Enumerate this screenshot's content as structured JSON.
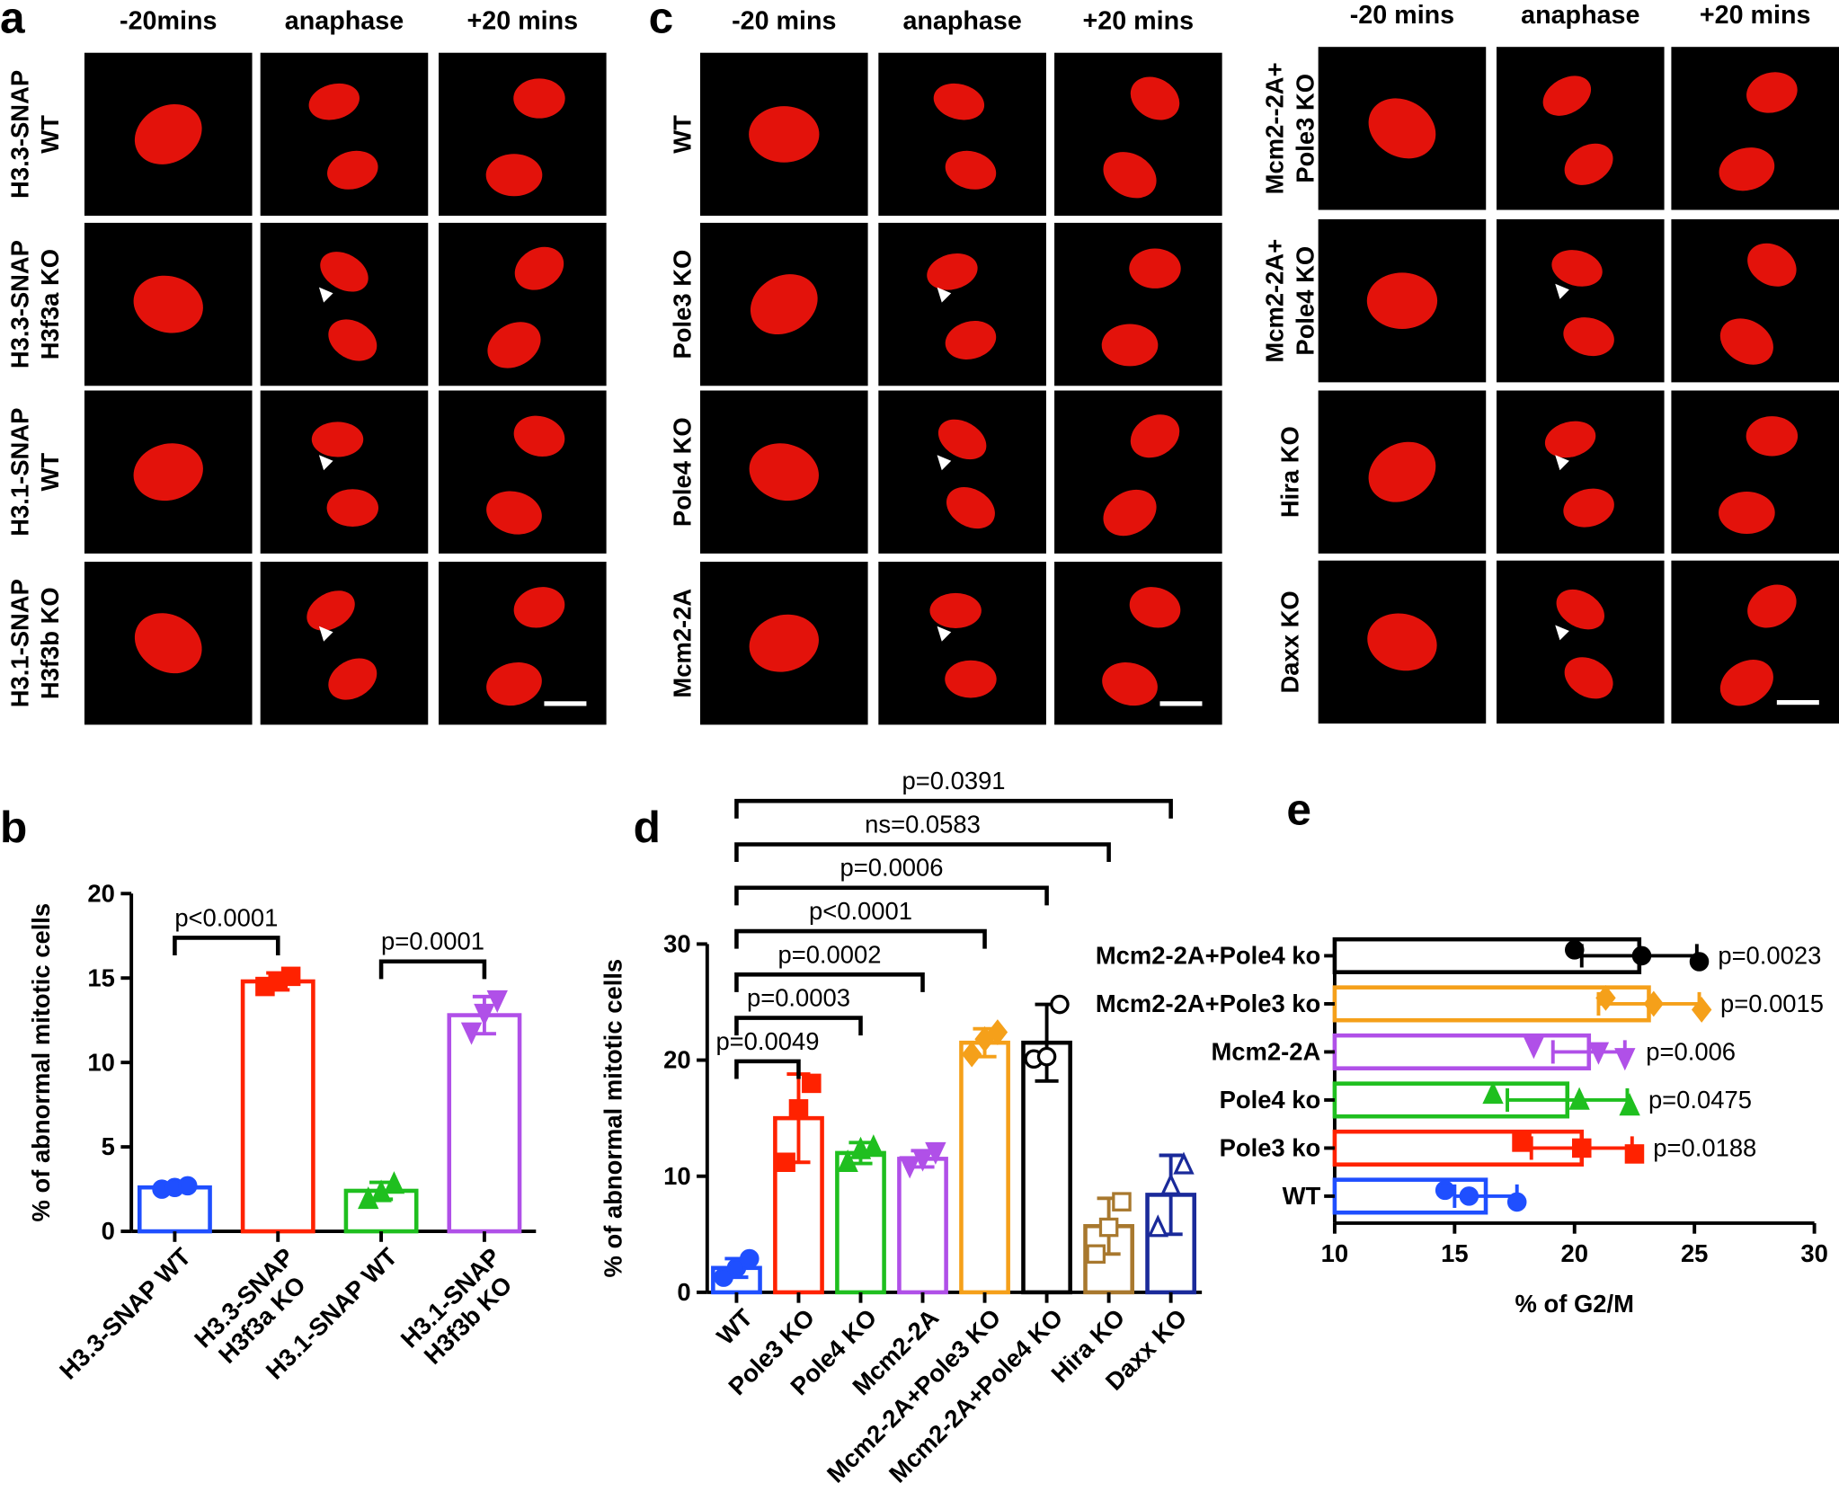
{
  "panel_labels": [
    "a",
    "b",
    "c",
    "d",
    "e"
  ],
  "image_panels": [
    {
      "columns": [
        "-20mins",
        "anaphase",
        "+20 mins"
      ],
      "rows": [
        [
          "H3.3-SNAP",
          "WT"
        ],
        [
          "H3.3-SNAP",
          "H3f3a KO"
        ],
        [
          "H3.1-SNAP",
          "WT"
        ],
        [
          "H3.1-SNAP",
          "H3f3b KO"
        ]
      ]
    },
    {
      "columns": [
        "-20 mins",
        "anaphase",
        "+20 mins"
      ],
      "rows": [
        [
          "WT"
        ],
        [
          "Pole3 KO"
        ],
        [
          "Pole4 KO"
        ],
        [
          "Mcm2-2A"
        ]
      ]
    },
    {
      "columns": [
        "-20 mins",
        "anaphase",
        "+20 mins"
      ],
      "rows": [
        [
          "Mcm2--2A+",
          "Pole3 KO"
        ],
        [
          "Mcm2-2A+",
          "Pole4 KO"
        ],
        [
          "Hira KO"
        ],
        [
          "Daxx KO"
        ]
      ]
    }
  ],
  "chart_data": [
    {
      "type": "bar",
      "ylabel": "% of  abnormal mitotic cells",
      "categories": [
        [
          "H3.3-SNAP WT"
        ],
        [
          "H3.3-SNAP",
          "H3f3a KO"
        ],
        [
          "H3.1-SNAP WT"
        ],
        [
          "H3.1-SNAP",
          "H3f3b KO"
        ]
      ],
      "values": [
        2.6,
        14.8,
        2.4,
        12.8
      ],
      "errors": [
        0.15,
        0.5,
        0.5,
        1.1
      ],
      "points": [
        [
          2.5,
          2.6,
          2.7
        ],
        [
          14.5,
          14.8,
          15.1
        ],
        [
          1.9,
          2.3,
          2.8
        ],
        [
          11.8,
          12.9,
          13.7
        ]
      ],
      "colors": [
        "#1f4fff",
        "#ff2200",
        "#1fbf1f",
        "#b050e8"
      ],
      "markers": [
        "circle",
        "square",
        "triangle",
        "triangle-down"
      ],
      "p_values": [
        null,
        "p<0.0001",
        null,
        "p=0.0001"
      ],
      "ylim": [
        0,
        20
      ],
      "yticks": [
        0,
        5,
        10,
        15,
        20
      ]
    },
    {
      "type": "bar",
      "ylabel": "% of  abnormal mitotic cells",
      "categories": [
        "WT",
        "Pole3 KO",
        "Pole4 KO",
        "Mcm2-2A",
        "Mcm2-2A+Pole3 KO",
        "Mcm2-2A+Pole4 KO",
        "Hira KO",
        "Daxx KO"
      ],
      "values": [
        2.1,
        15,
        12,
        11.5,
        21.5,
        21.5,
        5.7,
        8.4
      ],
      "errors": [
        0.8,
        3.8,
        0.9,
        0.7,
        1.2,
        3.3,
        2.4,
        3.4
      ],
      "points": [
        [
          1.3,
          2.1,
          2.9
        ],
        [
          11.2,
          15.8,
          18
        ],
        [
          11.2,
          12.3,
          12.5
        ],
        [
          10.9,
          11.5,
          12.1
        ],
        [
          20.5,
          21.8,
          22.4
        ],
        [
          20.1,
          20.3,
          24.8
        ],
        [
          3.3,
          5.6,
          7.8
        ],
        [
          5.6,
          9.2,
          11
        ]
      ],
      "colors": [
        "#1f4fff",
        "#ff2200",
        "#1fbf1f",
        "#b050e8",
        "#f5a01a",
        "#000000",
        "#a8782e",
        "#1a2a9a"
      ],
      "markers": [
        "circle",
        "square",
        "triangle",
        "triangle-down",
        "diamond",
        "circle-open",
        "square-open",
        "triangle-open"
      ],
      "p_values": [
        null,
        "p=0.0049",
        "p=0.0003",
        "p=0.0002",
        "p<0.0001",
        "p=0.0006",
        "ns=0.0583",
        "p=0.0391"
      ],
      "ylim": [
        0,
        30
      ],
      "yticks": [
        0,
        10,
        20,
        30
      ]
    },
    {
      "type": "barh",
      "xlabel": "% of G2/M",
      "categories": [
        "WT",
        "Pole3 ko",
        "Pole4 ko",
        "Mcm2-2A",
        "Mcm2-2A+Pole3 ko",
        "Mcm2-2A+Pole4 ko"
      ],
      "values": [
        16.3,
        20.3,
        19.7,
        20.6,
        23.1,
        22.7
      ],
      "errors": [
        1.3,
        2.1,
        2.5,
        1.5,
        2.1,
        2.4
      ],
      "points": [
        [
          14.6,
          15.6,
          17.6
        ],
        [
          17.8,
          20.3,
          22.5
        ],
        [
          16.6,
          20.2,
          22.3
        ],
        [
          18.3,
          21,
          22.1
        ],
        [
          21.3,
          23.3,
          25.3
        ],
        [
          20,
          22.8,
          25.2
        ]
      ],
      "colors": [
        "#1f4fff",
        "#ff2200",
        "#1fbf1f",
        "#b050e8",
        "#f5a01a",
        "#000000"
      ],
      "markers": [
        "circle",
        "square",
        "triangle",
        "triangle-down",
        "diamond",
        "circle"
      ],
      "p_values": [
        null,
        "p=0.0188",
        "p=0.0475",
        "p=0.006",
        "p=0.0015",
        "p=0.0023"
      ],
      "xlim": [
        10,
        30
      ],
      "xticks": [
        10,
        15,
        20,
        25,
        30
      ]
    }
  ]
}
